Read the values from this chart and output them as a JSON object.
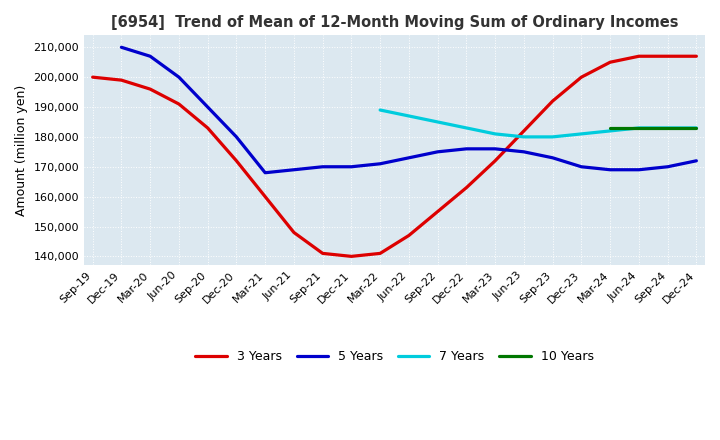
{
  "title": "[6954]  Trend of Mean of 12-Month Moving Sum of Ordinary Incomes",
  "ylabel": "Amount (million yen)",
  "ylim": [
    137000,
    214000
  ],
  "yticks": [
    140000,
    150000,
    160000,
    170000,
    180000,
    190000,
    200000,
    210000
  ],
  "background_color": "#dce8f0",
  "grid_color": "#aaaaaa",
  "line_colors": {
    "3y": "#dd0000",
    "5y": "#0000cc",
    "7y": "#00ccdd",
    "10y": "#007700"
  },
  "x_labels": [
    "Sep-19",
    "Dec-19",
    "Mar-20",
    "Jun-20",
    "Sep-20",
    "Dec-20",
    "Mar-21",
    "Jun-21",
    "Sep-21",
    "Dec-21",
    "Mar-22",
    "Jun-22",
    "Sep-22",
    "Dec-22",
    "Mar-23",
    "Jun-23",
    "Sep-23",
    "Dec-23",
    "Mar-24",
    "Jun-24",
    "Sep-24",
    "Dec-24"
  ],
  "data_3y": [
    200000,
    199000,
    196000,
    191000,
    183000,
    172000,
    160000,
    148000,
    141000,
    140000,
    141000,
    147000,
    155000,
    163000,
    172000,
    182000,
    192000,
    200000,
    205000,
    207000,
    207000,
    207000
  ],
  "data_5y": [
    null,
    210000,
    207000,
    200000,
    190000,
    180000,
    168000,
    169000,
    170000,
    170000,
    171000,
    173000,
    175000,
    176000,
    176000,
    175000,
    173000,
    170000,
    169000,
    169000,
    170000,
    172000
  ],
  "data_7y": [
    null,
    null,
    null,
    null,
    null,
    null,
    null,
    null,
    null,
    null,
    189000,
    187000,
    185000,
    183000,
    181000,
    180000,
    180000,
    181000,
    182000,
    183000,
    183000,
    183000
  ],
  "data_10y": [
    null,
    null,
    null,
    null,
    null,
    null,
    null,
    null,
    null,
    null,
    null,
    null,
    null,
    null,
    null,
    null,
    null,
    null,
    183000,
    183000,
    183000,
    183000
  ]
}
